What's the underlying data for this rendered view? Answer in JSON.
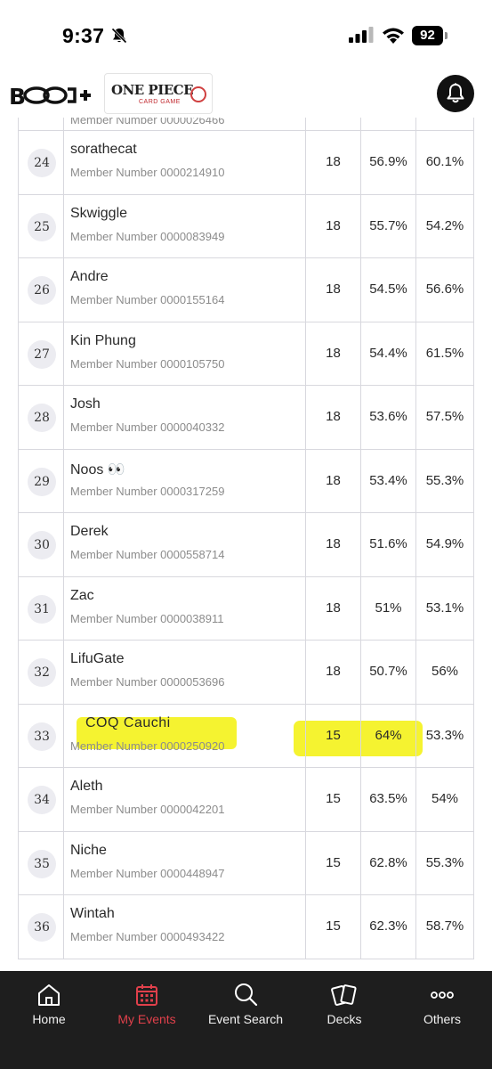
{
  "status_bar": {
    "time": "9:37",
    "battery": "92"
  },
  "header": {
    "game_logo_text": "ONE PIECE",
    "game_logo_sub": "CARD GAME"
  },
  "partial_row": {
    "member": "Member Number 0000026466"
  },
  "rows": [
    {
      "rank": "24",
      "name": "sorathecat",
      "member": "Member Number 0000214910",
      "points": "18",
      "omw": "56.9%",
      "oomw": "60.1%"
    },
    {
      "rank": "25",
      "name": "Skwiggle",
      "member": "Member Number 0000083949",
      "points": "18",
      "omw": "55.7%",
      "oomw": "54.2%"
    },
    {
      "rank": "26",
      "name": "Andre",
      "member": "Member Number 0000155164",
      "points": "18",
      "omw": "54.5%",
      "oomw": "56.6%"
    },
    {
      "rank": "27",
      "name": "Kin Phung",
      "member": "Member Number 0000105750",
      "points": "18",
      "omw": "54.4%",
      "oomw": "61.5%"
    },
    {
      "rank": "28",
      "name": "Josh",
      "member": "Member Number 0000040332",
      "points": "18",
      "omw": "53.6%",
      "oomw": "57.5%"
    },
    {
      "rank": "29",
      "name": "Noos 👀",
      "member": "Member Number 0000317259",
      "points": "18",
      "omw": "53.4%",
      "oomw": "55.3%"
    },
    {
      "rank": "30",
      "name": "Derek",
      "member": "Member Number 0000558714",
      "points": "18",
      "omw": "51.6%",
      "oomw": "54.9%"
    },
    {
      "rank": "31",
      "name": "Zac",
      "member": "Member Number 0000038911",
      "points": "18",
      "omw": "51%",
      "oomw": "53.1%"
    },
    {
      "rank": "32",
      "name": "LifuGate",
      "member": "Member Number 0000053696",
      "points": "18",
      "omw": "50.7%",
      "oomw": "56%"
    },
    {
      "rank": "33",
      "name": "COQ      Cauchi",
      "member": "Member Number 0000250920",
      "points": "15",
      "omw": "64%",
      "oomw": "53.3%",
      "highlight": true
    },
    {
      "rank": "34",
      "name": "Aleth",
      "member": "Member Number 0000042201",
      "points": "15",
      "omw": "63.5%",
      "oomw": "54%"
    },
    {
      "rank": "35",
      "name": "Niche",
      "member": "Member Number 0000448947",
      "points": "15",
      "omw": "62.8%",
      "oomw": "55.3%"
    },
    {
      "rank": "36",
      "name": "Wintah",
      "member": "Member Number 0000493422",
      "points": "15",
      "omw": "62.3%",
      "oomw": "58.7%"
    }
  ],
  "nav": {
    "items": [
      {
        "label": "Home",
        "icon": "home-icon"
      },
      {
        "label": "My Events",
        "icon": "calendar-icon",
        "active": true
      },
      {
        "label": "Event Search",
        "icon": "search-icon"
      },
      {
        "label": "Decks",
        "icon": "cards-icon"
      },
      {
        "label": "Others",
        "icon": "more-icon"
      }
    ]
  },
  "colors": {
    "active_nav": "#e0404b",
    "highlight": "#f4f225",
    "nav_bg": "#1e1e1e"
  }
}
